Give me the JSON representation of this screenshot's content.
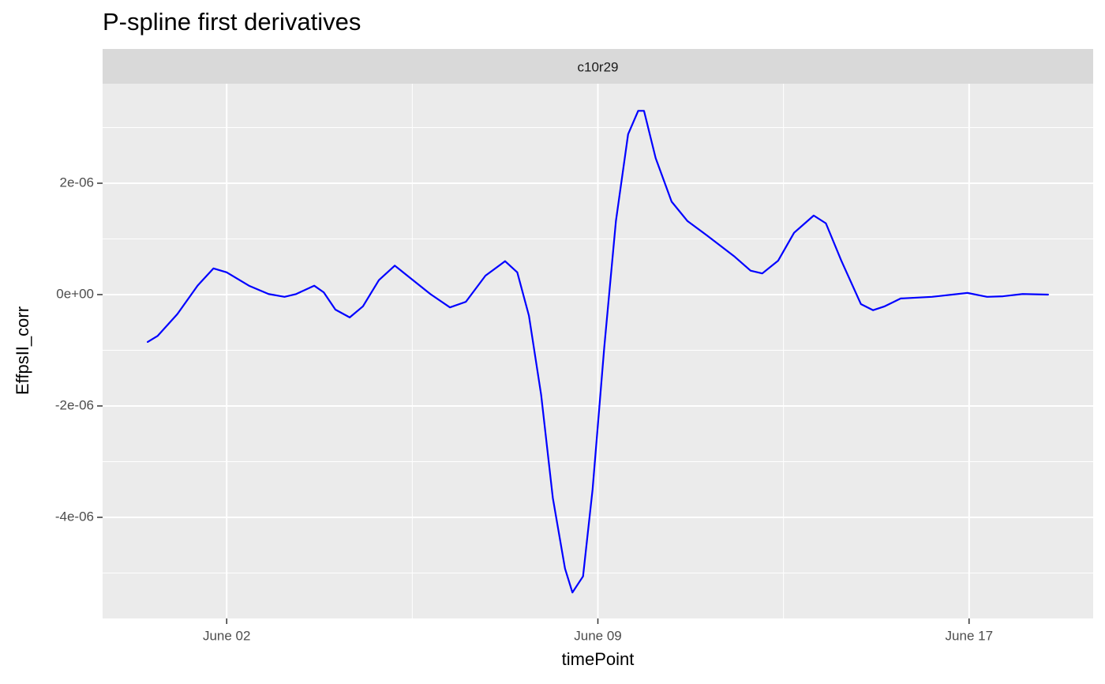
{
  "chart_data": {
    "type": "line",
    "title": "P-spline first derivatives",
    "facet": "c10r29",
    "x_label": "timePoint",
    "y_label": "EffpsII_corr",
    "color": "#0000ff",
    "grid": true,
    "xlim": [
      -0.34,
      18.34
    ],
    "ylim": [
      -5.816e-06,
      3.787e-06
    ],
    "xticks": [
      {
        "value": 2,
        "label": "June 02"
      },
      {
        "value": 9,
        "label": "June 09"
      },
      {
        "value": 16,
        "label": "June 17"
      }
    ],
    "yticks": [
      {
        "value": -4e-06,
        "label": "-4e-06"
      },
      {
        "value": -2e-06,
        "label": "-2e-06"
      },
      {
        "value": 0,
        "label": "0e+00"
      },
      {
        "value": 2e-06,
        "label": "2e-06"
      }
    ],
    "x": [
      0.51,
      0.7,
      1.07,
      1.45,
      1.75,
      2.0,
      2.42,
      2.79,
      3.09,
      3.31,
      3.65,
      3.83,
      4.05,
      4.32,
      4.57,
      4.87,
      5.17,
      5.46,
      5.84,
      6.21,
      6.51,
      6.88,
      7.25,
      7.48,
      7.7,
      7.93,
      8.15,
      8.38,
      8.52,
      8.72,
      8.9,
      9.12,
      9.34,
      9.57,
      9.76,
      9.87,
      10.09,
      10.39,
      10.69,
      11.06,
      11.58,
      11.88,
      12.1,
      12.4,
      12.7,
      13.07,
      13.3,
      13.59,
      13.96,
      14.19,
      14.41,
      14.71,
      15.3,
      15.97,
      16.34,
      16.64,
      17.01,
      17.49
    ],
    "values": [
      -8.5e-07,
      -7.4e-07,
      -3.5e-07,
      1.6e-07,
      4.7e-07,
      4e-07,
      1.6e-07,
      1e-08,
      -4e-08,
      1e-08,
      1.6e-07,
      4e-08,
      -2.7e-07,
      -4.1e-07,
      -2.1e-07,
      2.6e-07,
      5.2e-07,
      3e-07,
      1e-08,
      -2.3e-07,
      -1.3e-07,
      3.4e-07,
      6e-07,
      4e-07,
      -3.8e-07,
      -1.8e-06,
      -3.65e-06,
      -4.92e-06,
      -5.35e-06,
      -5.06e-06,
      -3.5e-06,
      -9.5e-07,
      1.32e-06,
      2.88e-06,
      3.3e-06,
      3.3e-06,
      2.45e-06,
      1.67e-06,
      1.32e-06,
      1.06e-06,
      6.8e-07,
      4.3e-07,
      3.8e-07,
      6.1e-07,
      1.11e-06,
      1.42e-06,
      1.28e-06,
      6.1e-07,
      -1.7e-07,
      -2.8e-07,
      -2.1e-07,
      -7e-08,
      -4e-08,
      3e-08,
      -4e-08,
      -3e-08,
      1e-08,
      0.0
    ]
  }
}
